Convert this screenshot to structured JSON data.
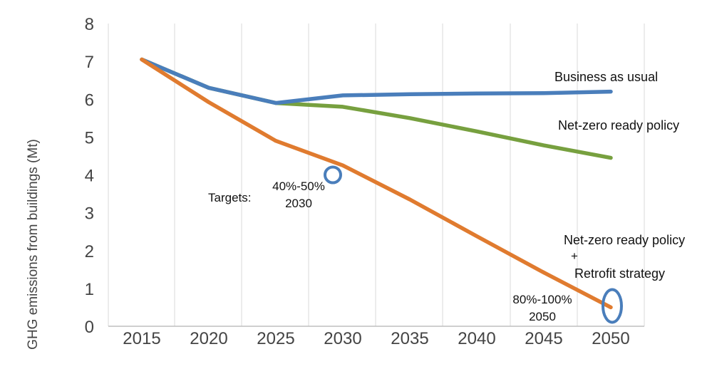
{
  "chart_data": {
    "type": "line",
    "xlabel": "",
    "ylabel": "GHG emissions from buildings  (Mt)",
    "x": [
      "2015",
      "2020",
      "2025",
      "2030",
      "2035",
      "2040",
      "2045",
      "2050"
    ],
    "ylim": [
      0,
      8
    ],
    "yticks": [
      "0",
      "1",
      "2",
      "3",
      "4",
      "5",
      "6",
      "7",
      "8"
    ],
    "grid": "vertical",
    "series": [
      {
        "name": "Business as usual",
        "color": "#4a7ebb",
        "values": [
          7.05,
          6.3,
          5.9,
          6.1,
          6.13,
          6.15,
          6.16,
          6.2
        ]
      },
      {
        "name": "Net-zero ready policy",
        "color": "#77a03f",
        "values": [
          7.05,
          6.3,
          5.9,
          5.8,
          5.5,
          5.15,
          4.78,
          4.45
        ]
      },
      {
        "name": "Net-zero ready policy + Retrofit strategy",
        "color": "#e07b2f",
        "values": [
          7.05,
          5.92,
          4.9,
          4.25,
          3.35,
          2.38,
          1.42,
          0.5
        ]
      }
    ],
    "series_labels": {
      "bau": "Business as usual",
      "netzero": "Net-zero ready policy",
      "retrofit_line1": "Net-zero ready policy",
      "retrofit_line2": "+",
      "retrofit_line3": "Retrofit strategy"
    },
    "annotations": {
      "targets_label": "Targets:",
      "target_2030_line1": "40%-50%",
      "target_2030_line2": "2030",
      "target_2050_line1": "80%-100%",
      "target_2050_line2": "2050"
    },
    "markers": [
      {
        "x": "2030",
        "y": 4.0,
        "shape": "circle",
        "color": "#4a7ebb"
      },
      {
        "x": "2050",
        "y": 0.5,
        "shape": "ellipse",
        "color": "#4a7ebb"
      }
    ]
  }
}
